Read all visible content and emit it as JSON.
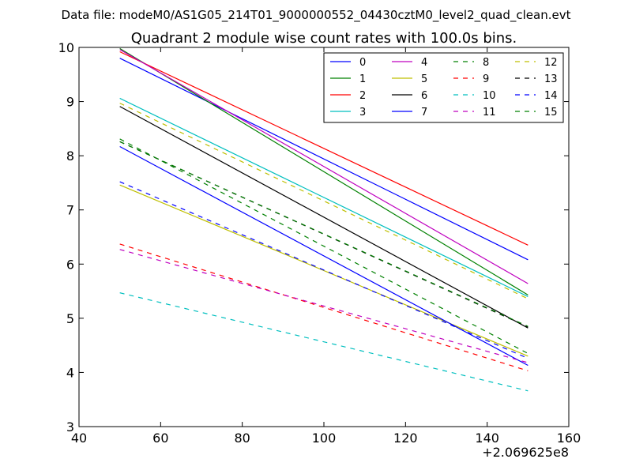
{
  "chart_data": {
    "type": "line",
    "suptitle": "Data file: modeM0/AS1G05_214T01_9000000552_04430cztM0_level2_quad_clean.evt",
    "title": "Quadrant 2 module wise count rates with 100.0s bins.",
    "xlabel": "",
    "ylabel": "",
    "x_offset_label": "+2.069625e8",
    "xlim": [
      40,
      160
    ],
    "ylim": [
      3,
      10
    ],
    "xticks": [
      40,
      60,
      80,
      100,
      120,
      140,
      160
    ],
    "yticks": [
      3,
      4,
      5,
      6,
      7,
      8,
      9,
      10
    ],
    "grid": false,
    "legend_position": "top-right",
    "legend_columns": 4,
    "x": [
      50,
      150
    ],
    "series": [
      {
        "name": "0",
        "color": "#0000ff",
        "dashed": false,
        "values": [
          9.8,
          6.08
        ]
      },
      {
        "name": "1",
        "color": "#008000",
        "dashed": false,
        "values": [
          9.98,
          5.43
        ]
      },
      {
        "name": "2",
        "color": "#ff0000",
        "dashed": false,
        "values": [
          9.92,
          6.35
        ]
      },
      {
        "name": "3",
        "color": "#00bfbf",
        "dashed": false,
        "values": [
          9.06,
          5.4
        ]
      },
      {
        "name": "4",
        "color": "#bf00bf",
        "dashed": false,
        "values": [
          9.96,
          5.64
        ]
      },
      {
        "name": "5",
        "color": "#bfbf00",
        "dashed": false,
        "values": [
          7.46,
          4.3
        ]
      },
      {
        "name": "6",
        "color": "#000000",
        "dashed": false,
        "values": [
          8.91,
          4.82
        ]
      },
      {
        "name": "7",
        "color": "#0000ff",
        "dashed": false,
        "values": [
          8.17,
          4.13
        ]
      },
      {
        "name": "8",
        "color": "#008000",
        "dashed": true,
        "values": [
          8.31,
          4.35
        ]
      },
      {
        "name": "9",
        "color": "#ff0000",
        "dashed": true,
        "values": [
          6.37,
          4.03
        ]
      },
      {
        "name": "10",
        "color": "#00bfbf",
        "dashed": true,
        "values": [
          5.47,
          3.66
        ]
      },
      {
        "name": "11",
        "color": "#bf00bf",
        "dashed": true,
        "values": [
          6.27,
          4.18
        ]
      },
      {
        "name": "12",
        "color": "#bfbf00",
        "dashed": true,
        "values": [
          8.97,
          5.36
        ]
      },
      {
        "name": "13",
        "color": "#000000",
        "dashed": true,
        "values": [
          8.26,
          4.84
        ]
      },
      {
        "name": "14",
        "color": "#0000ff",
        "dashed": true,
        "values": [
          7.52,
          4.26
        ]
      },
      {
        "name": "15",
        "color": "#008000",
        "dashed": true,
        "values": [
          8.26,
          4.85
        ]
      }
    ]
  }
}
